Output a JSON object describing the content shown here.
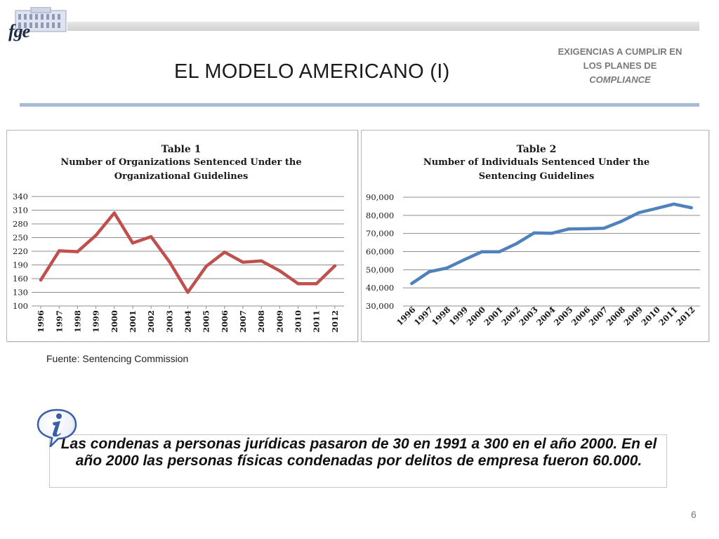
{
  "header": {
    "logo_text": "fge",
    "title": "EL MODELO AMERICANO (I)",
    "section_label": {
      "line1": "EXIGENCIAS A CUMPLIR EN",
      "line2": "LOS PLANES DE",
      "line3": "COMPLIANCE"
    }
  },
  "source_note": "Fuente: Sentencing  Commission",
  "info_text": "Las condenas a personas jurídicas pasaron de 30 en 1991 a 300 en el año 2000. En el año 2000 las personas físicas condenadas por delitos de empresa fueron 60.000.",
  "page_number": "6",
  "colors": {
    "series1": "#c0504d",
    "series2": "#4f81bd",
    "rule": "#a9bcd6",
    "icon": "#3a5fa6"
  },
  "icons": {
    "info": "info-icon",
    "logo": "building-logo"
  },
  "chart_data": [
    {
      "type": "line",
      "title": "Table 1",
      "subtitle": "Number of Organizations Sentenced Under the Organizational Guidelines",
      "x": [
        "1996",
        "1997",
        "1998",
        "1999",
        "2000",
        "2001",
        "2002",
        "2003",
        "2004",
        "2005",
        "2006",
        "2007",
        "2008",
        "2009",
        "2010",
        "2011",
        "2012"
      ],
      "values": [
        157,
        221,
        219,
        255,
        304,
        238,
        252,
        197,
        130,
        187,
        218,
        196,
        199,
        177,
        149,
        149,
        188
      ],
      "ylim": [
        100,
        340
      ],
      "yticks": [
        100,
        130,
        160,
        190,
        220,
        250,
        280,
        310,
        340
      ],
      "ytick_labels": [
        "100",
        "130",
        "160",
        "190",
        "220",
        "250",
        "280",
        "310",
        "340"
      ],
      "grid": true,
      "xlabel": "",
      "ylabel": ""
    },
    {
      "type": "line",
      "title": "Table 2",
      "subtitle": "Number of Individuals Sentenced Under the Sentencing Guidelines",
      "x": [
        "1996",
        "1997",
        "1998",
        "1999",
        "2000",
        "2001",
        "2002",
        "2003",
        "2004",
        "2005",
        "2006",
        "2007",
        "2008",
        "2009",
        "2010",
        "2011",
        "2012"
      ],
      "values": [
        42400,
        48900,
        50900,
        55500,
        59900,
        59900,
        64400,
        70300,
        70100,
        72500,
        72600,
        72900,
        76700,
        81500,
        83800,
        86200,
        84200
      ],
      "ylim": [
        30000,
        90000
      ],
      "yticks": [
        30000,
        40000,
        50000,
        60000,
        70000,
        80000,
        90000
      ],
      "ytick_labels": [
        "30,000",
        "40,000",
        "50,000",
        "60,000",
        "70,000",
        "80,000",
        "90,000"
      ],
      "grid": true,
      "xlabel": "",
      "ylabel": ""
    }
  ]
}
